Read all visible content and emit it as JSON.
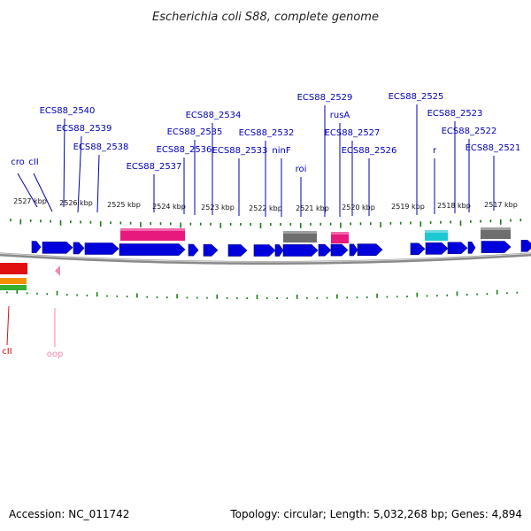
{
  "title": "Escherichia coli S88, complete genome",
  "footer": {
    "accession": "Accession: NC_011742",
    "summary": "Topology: circular; Length: 5,032,268 bp; Genes: 4,894"
  },
  "colors": {
    "gene": "#0000dd",
    "label": "#0000bb",
    "tick": "#1a7a1a",
    "backbone": "#8a8a8a",
    "pink": "#e8197d",
    "gray": "#6e6e6e",
    "cyan": "#1ec8d2",
    "red": "#e01010",
    "orange": "#f39000",
    "green": "#33b033",
    "pale_pink": "#f08ab0"
  },
  "ruler": {
    "unit": "kbp",
    "labels": [
      "2527 kbp",
      "2526 kbp",
      "2525 kbp",
      "2524 kbp",
      "2523 kbp",
      "2522 kbp",
      "2521 kbp",
      "2520 kbp",
      "2519 kbp",
      "2518 kbp",
      "2517 kbp"
    ]
  },
  "gene_labels": [
    {
      "name": "cro",
      "color": "label"
    },
    {
      "name": "cII",
      "color": "label"
    },
    {
      "name": "ECS88_2540",
      "color": "label"
    },
    {
      "name": "ECS88_2539",
      "color": "label"
    },
    {
      "name": "ECS88_2538",
      "color": "label"
    },
    {
      "name": "ECS88_2537",
      "color": "label"
    },
    {
      "name": "ECS88_2536",
      "color": "label"
    },
    {
      "name": "ECS88_2535",
      "color": "label"
    },
    {
      "name": "ECS88_2534",
      "color": "label"
    },
    {
      "name": "ECS88_2533",
      "color": "label"
    },
    {
      "name": "ECS88_2532",
      "color": "label"
    },
    {
      "name": "ninF",
      "color": "label"
    },
    {
      "name": "roi",
      "color": "label"
    },
    {
      "name": "ECS88_2529",
      "color": "label"
    },
    {
      "name": "rusA",
      "color": "label"
    },
    {
      "name": "ECS88_2527",
      "color": "label"
    },
    {
      "name": "ECS88_2526",
      "color": "label"
    },
    {
      "name": "ECS88_2525",
      "color": "label"
    },
    {
      "name": "r",
      "color": "label"
    },
    {
      "name": "ECS88_2523",
      "color": "label"
    },
    {
      "name": "ECS88_2522",
      "color": "label"
    },
    {
      "name": "ECS88_2521",
      "color": "label"
    }
  ],
  "lower_labels": [
    {
      "name": "cII",
      "color": "red"
    },
    {
      "name": "oop",
      "color": "pale_pink"
    }
  ]
}
